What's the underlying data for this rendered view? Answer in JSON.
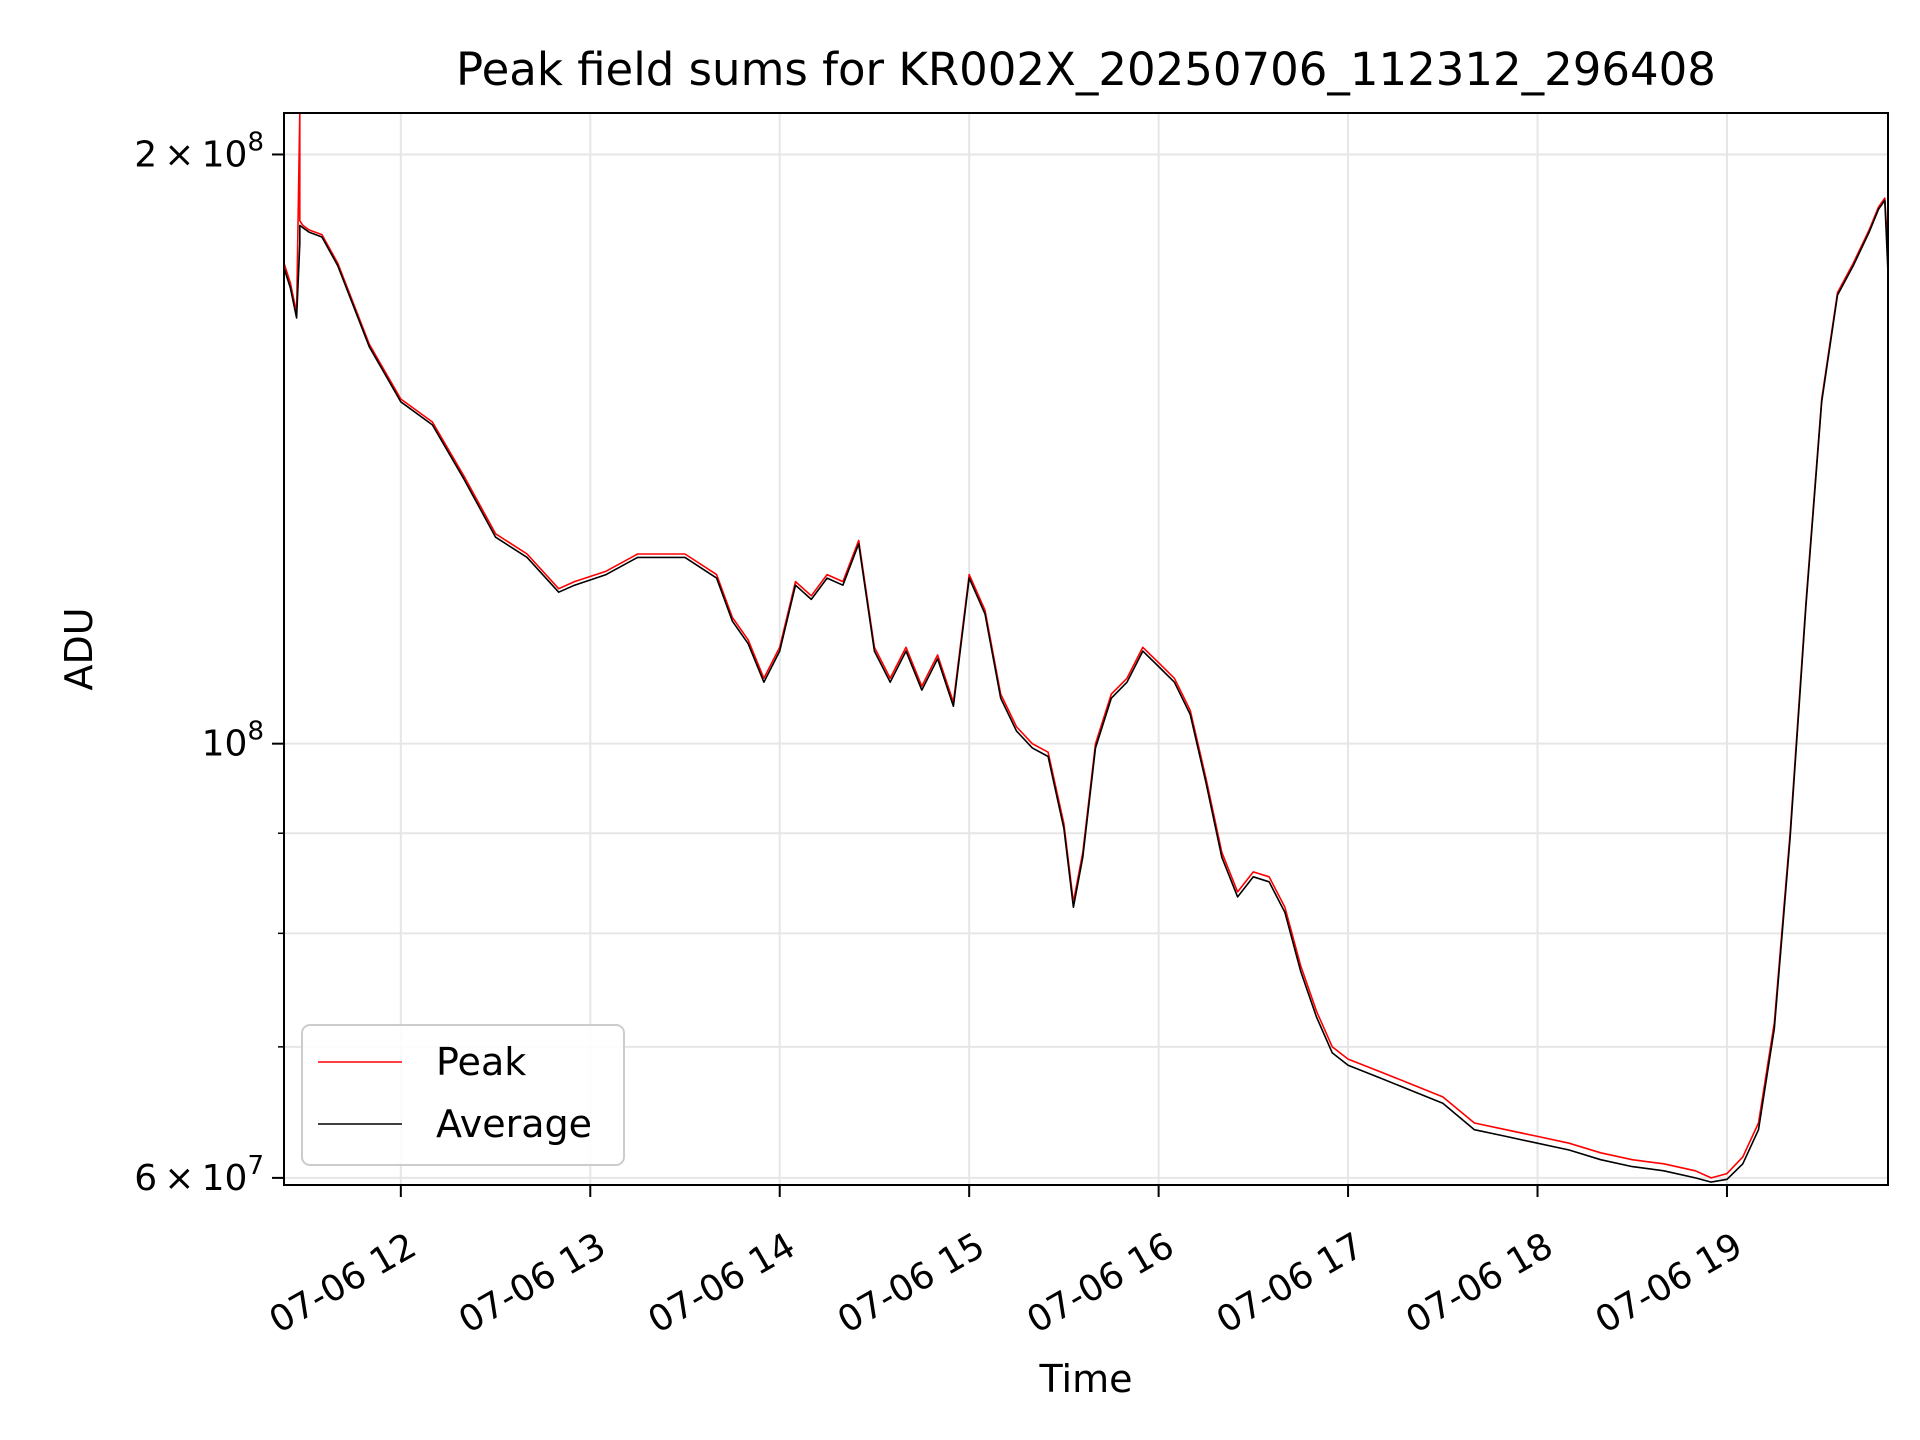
{
  "chart_data": {
    "type": "line",
    "title": "Peak field sums for KR002X_20250706_112312_296408",
    "xlabel": "Time",
    "ylabel": "ADU",
    "y_scale": "log",
    "ylim": [
      59500000,
      210000000
    ],
    "xlim": [
      "2025-07-06 11:23",
      "2025-07-06 19:51"
    ],
    "grid": true,
    "legend_position": "lower-left",
    "x_ticks": [
      {
        "time": "2025-07-06 12:00",
        "label": "07-06 12"
      },
      {
        "time": "2025-07-06 13:00",
        "label": "07-06 13"
      },
      {
        "time": "2025-07-06 14:00",
        "label": "07-06 14"
      },
      {
        "time": "2025-07-06 15:00",
        "label": "07-06 15"
      },
      {
        "time": "2025-07-06 16:00",
        "label": "07-06 16"
      },
      {
        "time": "2025-07-06 17:00",
        "label": "07-06 17"
      },
      {
        "time": "2025-07-06 18:00",
        "label": "07-06 18"
      },
      {
        "time": "2025-07-06 19:00",
        "label": "07-06 19"
      }
    ],
    "y_major_ticks": [
      {
        "value": 60000000,
        "mantissa": "6",
        "base": "10",
        "exp": "7"
      },
      {
        "value": 100000000,
        "mantissa": "",
        "base": "10",
        "exp": "8"
      },
      {
        "value": 200000000,
        "mantissa": "2",
        "base": "10",
        "exp": "8"
      }
    ],
    "y_minor_gridlines": [
      70000000,
      80000000,
      90000000
    ],
    "series": [
      {
        "name": "Peak",
        "color": "#ff0000",
        "x": [
          "2025-07-06 11:23",
          "2025-07-06 11:25",
          "2025-07-06 11:27",
          "2025-07-06 11:28",
          "2025-07-06 11:28",
          "2025-07-06 11:29",
          "2025-07-06 11:31",
          "2025-07-06 11:35",
          "2025-07-06 11:40",
          "2025-07-06 11:50",
          "2025-07-06 12:00",
          "2025-07-06 12:10",
          "2025-07-06 12:20",
          "2025-07-06 12:30",
          "2025-07-06 12:40",
          "2025-07-06 12:50",
          "2025-07-06 12:55",
          "2025-07-06 13:05",
          "2025-07-06 13:15",
          "2025-07-06 13:30",
          "2025-07-06 13:40",
          "2025-07-06 13:45",
          "2025-07-06 13:50",
          "2025-07-06 13:55",
          "2025-07-06 14:00",
          "2025-07-06 14:05",
          "2025-07-06 14:10",
          "2025-07-06 14:15",
          "2025-07-06 14:20",
          "2025-07-06 14:25",
          "2025-07-06 14:30",
          "2025-07-06 14:35",
          "2025-07-06 14:40",
          "2025-07-06 14:45",
          "2025-07-06 14:50",
          "2025-07-06 14:55",
          "2025-07-06 15:00",
          "2025-07-06 15:05",
          "2025-07-06 15:10",
          "2025-07-06 15:15",
          "2025-07-06 15:20",
          "2025-07-06 15:25",
          "2025-07-06 15:30",
          "2025-07-06 15:33",
          "2025-07-06 15:36",
          "2025-07-06 15:40",
          "2025-07-06 15:45",
          "2025-07-06 15:50",
          "2025-07-06 15:55",
          "2025-07-06 16:00",
          "2025-07-06 16:05",
          "2025-07-06 16:10",
          "2025-07-06 16:15",
          "2025-07-06 16:20",
          "2025-07-06 16:25",
          "2025-07-06 16:30",
          "2025-07-06 16:35",
          "2025-07-06 16:40",
          "2025-07-06 16:45",
          "2025-07-06 16:50",
          "2025-07-06 16:55",
          "2025-07-06 17:00",
          "2025-07-06 17:10",
          "2025-07-06 17:20",
          "2025-07-06 17:30",
          "2025-07-06 17:40",
          "2025-07-06 17:50",
          "2025-07-06 18:00",
          "2025-07-06 18:10",
          "2025-07-06 18:20",
          "2025-07-06 18:30",
          "2025-07-06 18:40",
          "2025-07-06 18:50",
          "2025-07-06 18:55",
          "2025-07-06 19:00",
          "2025-07-06 19:05",
          "2025-07-06 19:10",
          "2025-07-06 19:15",
          "2025-07-06 19:20",
          "2025-07-06 19:25",
          "2025-07-06 19:30",
          "2025-07-06 19:35",
          "2025-07-06 19:40",
          "2025-07-06 19:45",
          "2025-07-06 19:48",
          "2025-07-06 19:50",
          "2025-07-06 19:51"
        ],
        "y": [
          176000000,
          172000000,
          166000000,
          210000000,
          185000000,
          184000000,
          183000000,
          182000000,
          176000000,
          160000000,
          150000000,
          146000000,
          137000000,
          128000000,
          125000000,
          120000000,
          121000000,
          122500000,
          125000000,
          125000000,
          122000000,
          116000000,
          113000000,
          108000000,
          112000000,
          121000000,
          119000000,
          122000000,
          121000000,
          127000000,
          112000000,
          108000000,
          112000000,
          107000000,
          111000000,
          105000000,
          122000000,
          117000000,
          106000000,
          102000000,
          100000000,
          99000000,
          91000000,
          83000000,
          88000000,
          100000000,
          106000000,
          108000000,
          112000000,
          110000000,
          108000000,
          104000000,
          96000000,
          88000000,
          84000000,
          86000000,
          85500000,
          82500000,
          77000000,
          73000000,
          70000000,
          69000000,
          68000000,
          67000000,
          66000000,
          64000000,
          63500000,
          63000000,
          62500000,
          61800000,
          61300000,
          61000000,
          60500000,
          60000000,
          60300000,
          61500000,
          64000000,
          72000000,
          90000000,
          118000000,
          150000000,
          170000000,
          176000000,
          183000000,
          188000000,
          190000000,
          178000000
        ]
      },
      {
        "name": "Average",
        "color": "#000000",
        "x": [
          "2025-07-06 11:23",
          "2025-07-06 11:25",
          "2025-07-06 11:27",
          "2025-07-06 11:28",
          "2025-07-06 11:28",
          "2025-07-06 11:29",
          "2025-07-06 11:31",
          "2025-07-06 11:35",
          "2025-07-06 11:40",
          "2025-07-06 11:50",
          "2025-07-06 12:00",
          "2025-07-06 12:10",
          "2025-07-06 12:20",
          "2025-07-06 12:30",
          "2025-07-06 12:40",
          "2025-07-06 12:50",
          "2025-07-06 12:55",
          "2025-07-06 13:05",
          "2025-07-06 13:15",
          "2025-07-06 13:30",
          "2025-07-06 13:40",
          "2025-07-06 13:45",
          "2025-07-06 13:50",
          "2025-07-06 13:55",
          "2025-07-06 14:00",
          "2025-07-06 14:05",
          "2025-07-06 14:10",
          "2025-07-06 14:15",
          "2025-07-06 14:20",
          "2025-07-06 14:25",
          "2025-07-06 14:30",
          "2025-07-06 14:35",
          "2025-07-06 14:40",
          "2025-07-06 14:45",
          "2025-07-06 14:50",
          "2025-07-06 14:55",
          "2025-07-06 15:00",
          "2025-07-06 15:05",
          "2025-07-06 15:10",
          "2025-07-06 15:15",
          "2025-07-06 15:20",
          "2025-07-06 15:25",
          "2025-07-06 15:30",
          "2025-07-06 15:33",
          "2025-07-06 15:36",
          "2025-07-06 15:40",
          "2025-07-06 15:45",
          "2025-07-06 15:50",
          "2025-07-06 15:55",
          "2025-07-06 16:00",
          "2025-07-06 16:05",
          "2025-07-06 16:10",
          "2025-07-06 16:15",
          "2025-07-06 16:20",
          "2025-07-06 16:25",
          "2025-07-06 16:30",
          "2025-07-06 16:35",
          "2025-07-06 16:40",
          "2025-07-06 16:45",
          "2025-07-06 16:50",
          "2025-07-06 16:55",
          "2025-07-06 17:00",
          "2025-07-06 17:10",
          "2025-07-06 17:20",
          "2025-07-06 17:30",
          "2025-07-06 17:40",
          "2025-07-06 17:50",
          "2025-07-06 18:00",
          "2025-07-06 18:10",
          "2025-07-06 18:20",
          "2025-07-06 18:30",
          "2025-07-06 18:40",
          "2025-07-06 18:50",
          "2025-07-06 18:55",
          "2025-07-06 19:00",
          "2025-07-06 19:05",
          "2025-07-06 19:10",
          "2025-07-06 19:15",
          "2025-07-06 19:20",
          "2025-07-06 19:25",
          "2025-07-06 19:30",
          "2025-07-06 19:35",
          "2025-07-06 19:40",
          "2025-07-06 19:45",
          "2025-07-06 19:48",
          "2025-07-06 19:50",
          "2025-07-06 19:51"
        ],
        "y": [
          175000000,
          171000000,
          165000000,
          180000000,
          184000000,
          183500000,
          182500000,
          181500000,
          175500000,
          159500000,
          149500000,
          145500000,
          136500000,
          127500000,
          124500000,
          119500000,
          120500000,
          122000000,
          124500000,
          124500000,
          121500000,
          115500000,
          112500000,
          107500000,
          111500000,
          120500000,
          118500000,
          121500000,
          120500000,
          126500000,
          111500000,
          107500000,
          111500000,
          106500000,
          110500000,
          104500000,
          121500000,
          116500000,
          105500000,
          101500000,
          99500000,
          98500000,
          90500000,
          82500000,
          87500000,
          99500000,
          105500000,
          107500000,
          111500000,
          109500000,
          107500000,
          103500000,
          95500000,
          87500000,
          83500000,
          85500000,
          85000000,
          82000000,
          76500000,
          72500000,
          69500000,
          68500000,
          67500000,
          66500000,
          65500000,
          63500000,
          63000000,
          62500000,
          62000000,
          61300000,
          60800000,
          60500000,
          60000000,
          59700000,
          59900000,
          61000000,
          63500000,
          71500000,
          89500000,
          117500000,
          149500000,
          169500000,
          175500000,
          182500000,
          187500000,
          189500000,
          174000000
        ]
      }
    ]
  }
}
